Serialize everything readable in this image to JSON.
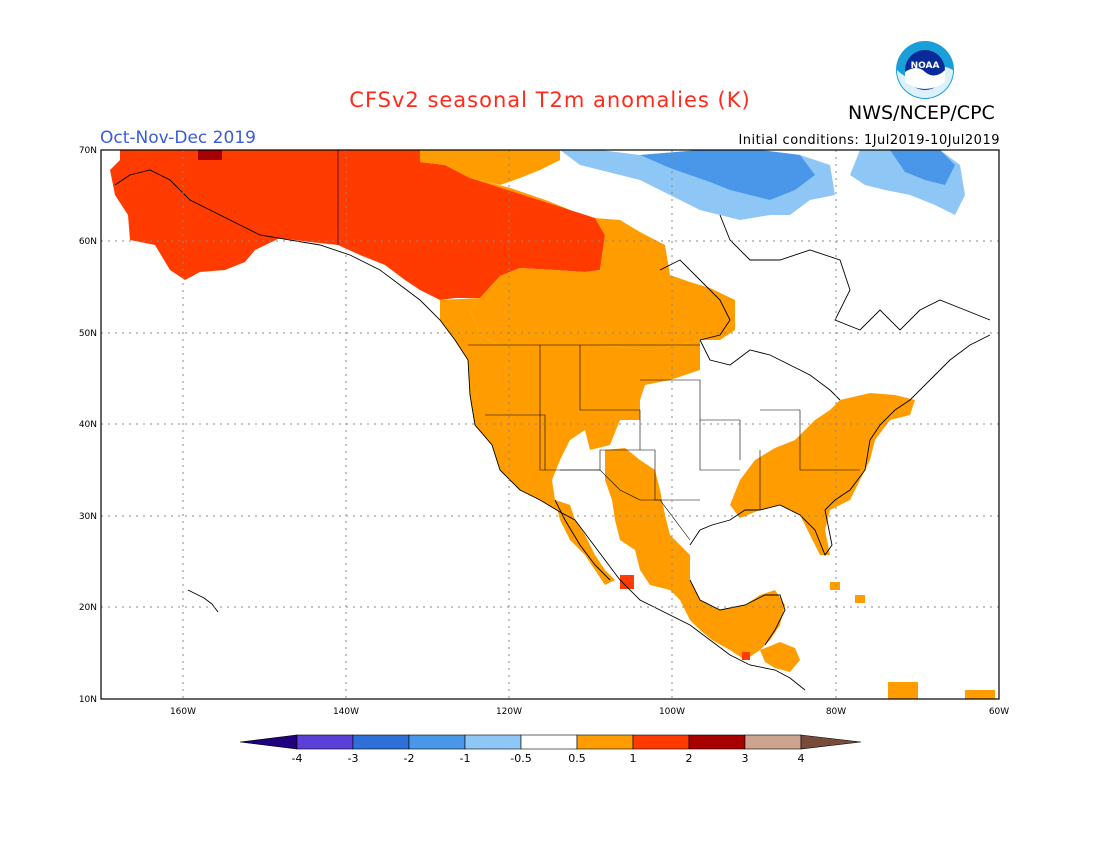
{
  "title": "CFSv2 seasonal T2m anomalies (K)",
  "organization": "NWS/NCEP/CPC",
  "logo_text": "NOAA",
  "period": "Oct-Nov-Dec 2019",
  "initial_conditions": "Initial conditions: 1Jul2019-10Jul2019",
  "map": {
    "lon_range": [
      -170,
      -60
    ],
    "lat_range": [
      10,
      70
    ],
    "lat_labels": [
      "70N",
      "60N",
      "50N",
      "40N",
      "30N",
      "20N",
      "10N"
    ],
    "lon_labels": [
      "160W",
      "140W",
      "120W",
      "100W",
      "80W",
      "60W"
    ]
  },
  "colorbar": {
    "labels": [
      "-4",
      "-3",
      "-2",
      "-1",
      "-0.5",
      "0.5",
      "1",
      "2",
      "3",
      "4"
    ],
    "colors": [
      "#1f007f",
      "#5b3fd6",
      "#2f6fd8",
      "#4a97ea",
      "#8ec7f5",
      "#ffffff",
      "#ff9d00",
      "#ff3b00",
      "#a70000",
      "#cda48f",
      "#7a4a3a"
    ]
  },
  "colors": {
    "anom_0_5_1": "#ff9d00",
    "anom_1_2": "#ff3b00",
    "anom_2_3": "#a70000",
    "anom_neg_0_5_1": "#8ec7f5",
    "anom_neg_1_2": "#4a97ea",
    "land_outline": "#000000"
  }
}
